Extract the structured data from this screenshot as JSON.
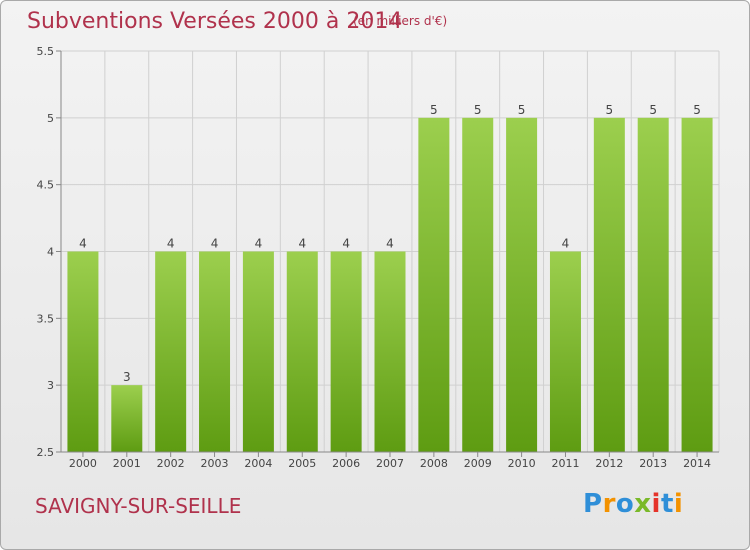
{
  "title": "Subventions Versées 2000 à 2014",
  "subtitle": "(en milliers d'€)",
  "commune": "SAVIGNY-SUR-SEILLE",
  "logo": {
    "text": "Proxiti",
    "letters": [
      "P",
      "r",
      "o",
      "x",
      "i",
      "t",
      "i"
    ],
    "colors": [
      "#2f8fd8",
      "#f39200",
      "#2f8fd8",
      "#7ab929",
      "#e5332a",
      "#2f8fd8",
      "#f39200"
    ]
  },
  "colors": {
    "bar_top": "#9ccf4e",
    "bar_bottom": "#5e9c12",
    "title": "#b0324c"
  },
  "chart_data": {
    "type": "bar",
    "title": "Subventions Versées 2000 à 2014",
    "subtitle": "(en milliers d'€)",
    "categories": [
      "2000",
      "2001",
      "2002",
      "2003",
      "2004",
      "2005",
      "2006",
      "2007",
      "2008",
      "2009",
      "2010",
      "2011",
      "2012",
      "2013",
      "2014"
    ],
    "values": [
      4,
      3,
      4,
      4,
      4,
      4,
      4,
      4,
      5,
      5,
      5,
      4,
      5,
      5,
      5
    ],
    "ylim": [
      2.5,
      5.5
    ],
    "yticks": [
      "2.5",
      "3",
      "3.5",
      "4",
      "4.5",
      "5",
      "5.5"
    ],
    "grid": true,
    "xlabel": "",
    "ylabel": ""
  }
}
